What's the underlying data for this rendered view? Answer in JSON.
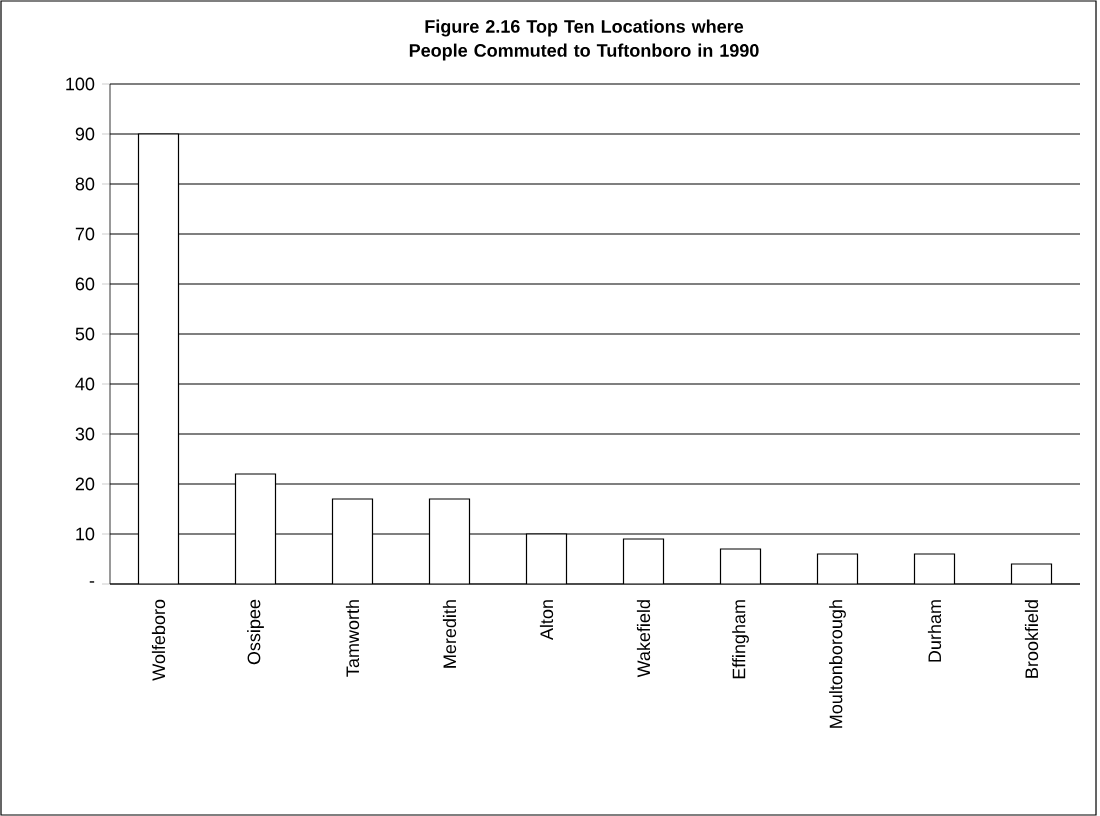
{
  "chart_data": {
    "type": "bar",
    "title": "Figure 2.16 Top Ten Locations where People Commuted to Tuftonboro in 1990",
    "categories": [
      "Wolfeboro",
      "Ossipee",
      "Tamworth",
      "Meredith",
      "Alton",
      "Wakefield",
      "Effingham",
      "Moultonborough",
      "Durham",
      "Brookfield"
    ],
    "values": [
      90,
      22,
      17,
      17,
      10,
      9,
      7,
      6,
      6,
      4
    ],
    "color": "#ffffff",
    "ylim": [
      0,
      100
    ],
    "yticks": [
      {
        "value": 0,
        "label": "-"
      },
      10,
      20,
      30,
      40,
      50,
      60,
      70,
      80,
      90,
      100
    ],
    "grid": "y"
  }
}
